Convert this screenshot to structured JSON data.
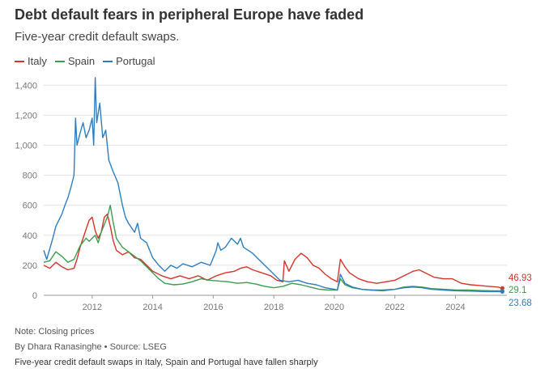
{
  "title": "Debt default fears in peripheral Europe have faded",
  "subtitle": "Five-year credit default swaps.",
  "note": "Note: Closing prices",
  "byline": "By Dhara Ranasinghe  • Source: LSEG",
  "caption": "Five-year credit default swaps in Italy, Spain and Portugal have fallen sharply",
  "colors": {
    "Italy": "#d7332b",
    "Spain": "#3a9e4f",
    "Portugal": "#2f7dbf",
    "grid": "#e3e3e3",
    "axis": "#999999"
  },
  "chart_data": {
    "type": "line",
    "x_ticks": [
      "2012",
      "2014",
      "2016",
      "2018",
      "2020",
      "2022",
      "2024"
    ],
    "y_ticks": [
      "0",
      "200",
      "400",
      "600",
      "800",
      "1,000",
      "1,200",
      "1,400"
    ],
    "xlim": [
      2010.4,
      2025.7
    ],
    "ylim": [
      0,
      1450
    ],
    "grid": true,
    "legend_position": "top-left",
    "series": [
      {
        "name": "Italy",
        "end_label": "46.93",
        "points": [
          [
            2010.4,
            200
          ],
          [
            2010.6,
            180
          ],
          [
            2010.8,
            220
          ],
          [
            2011.0,
            190
          ],
          [
            2011.2,
            170
          ],
          [
            2011.4,
            180
          ],
          [
            2011.5,
            240
          ],
          [
            2011.6,
            320
          ],
          [
            2011.8,
            440
          ],
          [
            2011.9,
            500
          ],
          [
            2012.0,
            520
          ],
          [
            2012.1,
            430
          ],
          [
            2012.2,
            380
          ],
          [
            2012.3,
            420
          ],
          [
            2012.4,
            520
          ],
          [
            2012.5,
            540
          ],
          [
            2012.6,
            460
          ],
          [
            2012.7,
            360
          ],
          [
            2012.8,
            300
          ],
          [
            2013.0,
            270
          ],
          [
            2013.2,
            290
          ],
          [
            2013.4,
            250
          ],
          [
            2013.6,
            240
          ],
          [
            2013.8,
            200
          ],
          [
            2014.0,
            160
          ],
          [
            2014.3,
            130
          ],
          [
            2014.6,
            110
          ],
          [
            2014.9,
            130
          ],
          [
            2015.2,
            110
          ],
          [
            2015.5,
            130
          ],
          [
            2015.8,
            100
          ],
          [
            2016.1,
            130
          ],
          [
            2016.4,
            150
          ],
          [
            2016.7,
            160
          ],
          [
            2016.9,
            180
          ],
          [
            2017.1,
            190
          ],
          [
            2017.3,
            170
          ],
          [
            2017.6,
            150
          ],
          [
            2017.9,
            130
          ],
          [
            2018.1,
            100
          ],
          [
            2018.3,
            90
          ],
          [
            2018.35,
            230
          ],
          [
            2018.5,
            160
          ],
          [
            2018.7,
            240
          ],
          [
            2018.9,
            280
          ],
          [
            2019.1,
            250
          ],
          [
            2019.3,
            200
          ],
          [
            2019.5,
            180
          ],
          [
            2019.7,
            140
          ],
          [
            2019.9,
            110
          ],
          [
            2020.1,
            90
          ],
          [
            2020.2,
            240
          ],
          [
            2020.35,
            190
          ],
          [
            2020.5,
            150
          ],
          [
            2020.8,
            110
          ],
          [
            2021.1,
            90
          ],
          [
            2021.4,
            80
          ],
          [
            2021.7,
            90
          ],
          [
            2022.0,
            100
          ],
          [
            2022.3,
            130
          ],
          [
            2022.6,
            160
          ],
          [
            2022.8,
            170
          ],
          [
            2023.0,
            150
          ],
          [
            2023.3,
            120
          ],
          [
            2023.6,
            110
          ],
          [
            2023.9,
            110
          ],
          [
            2024.2,
            80
          ],
          [
            2024.5,
            70
          ],
          [
            2024.8,
            65
          ],
          [
            2025.1,
            60
          ],
          [
            2025.4,
            55
          ],
          [
            2025.55,
            47
          ]
        ]
      },
      {
        "name": "Spain",
        "end_label": "29.1",
        "points": [
          [
            2010.4,
            220
          ],
          [
            2010.6,
            230
          ],
          [
            2010.8,
            290
          ],
          [
            2011.0,
            260
          ],
          [
            2011.2,
            220
          ],
          [
            2011.4,
            240
          ],
          [
            2011.6,
            330
          ],
          [
            2011.8,
            380
          ],
          [
            2011.9,
            360
          ],
          [
            2012.0,
            380
          ],
          [
            2012.1,
            400
          ],
          [
            2012.2,
            350
          ],
          [
            2012.3,
            420
          ],
          [
            2012.5,
            520
          ],
          [
            2012.6,
            600
          ],
          [
            2012.7,
            480
          ],
          [
            2012.8,
            380
          ],
          [
            2013.0,
            320
          ],
          [
            2013.2,
            290
          ],
          [
            2013.4,
            260
          ],
          [
            2013.6,
            230
          ],
          [
            2013.8,
            190
          ],
          [
            2014.0,
            150
          ],
          [
            2014.2,
            110
          ],
          [
            2014.4,
            80
          ],
          [
            2014.7,
            70
          ],
          [
            2015.0,
            75
          ],
          [
            2015.3,
            90
          ],
          [
            2015.6,
            110
          ],
          [
            2015.9,
            100
          ],
          [
            2016.2,
            95
          ],
          [
            2016.5,
            90
          ],
          [
            2016.8,
            80
          ],
          [
            2017.1,
            85
          ],
          [
            2017.4,
            75
          ],
          [
            2017.7,
            60
          ],
          [
            2018.0,
            50
          ],
          [
            2018.3,
            60
          ],
          [
            2018.6,
            80
          ],
          [
            2018.9,
            70
          ],
          [
            2019.2,
            55
          ],
          [
            2019.5,
            40
          ],
          [
            2019.8,
            35
          ],
          [
            2020.1,
            35
          ],
          [
            2020.2,
            110
          ],
          [
            2020.35,
            70
          ],
          [
            2020.6,
            50
          ],
          [
            2020.9,
            40
          ],
          [
            2021.2,
            35
          ],
          [
            2021.6,
            35
          ],
          [
            2022.0,
            40
          ],
          [
            2022.3,
            55
          ],
          [
            2022.6,
            60
          ],
          [
            2022.9,
            55
          ],
          [
            2023.2,
            45
          ],
          [
            2023.6,
            40
          ],
          [
            2024.0,
            35
          ],
          [
            2024.4,
            35
          ],
          [
            2024.8,
            32
          ],
          [
            2025.2,
            30
          ],
          [
            2025.55,
            29
          ]
        ]
      },
      {
        "name": "Portugal",
        "end_label": "23.68",
        "points": [
          [
            2010.4,
            300
          ],
          [
            2010.5,
            240
          ],
          [
            2010.6,
            310
          ],
          [
            2010.7,
            380
          ],
          [
            2010.8,
            460
          ],
          [
            2010.9,
            500
          ],
          [
            2011.0,
            540
          ],
          [
            2011.1,
            600
          ],
          [
            2011.2,
            650
          ],
          [
            2011.3,
            720
          ],
          [
            2011.4,
            800
          ],
          [
            2011.45,
            1180
          ],
          [
            2011.5,
            1000
          ],
          [
            2011.6,
            1080
          ],
          [
            2011.7,
            1150
          ],
          [
            2011.8,
            1050
          ],
          [
            2011.9,
            1100
          ],
          [
            2012.0,
            1180
          ],
          [
            2012.05,
            1000
          ],
          [
            2012.1,
            1450
          ],
          [
            2012.15,
            1150
          ],
          [
            2012.25,
            1280
          ],
          [
            2012.35,
            1050
          ],
          [
            2012.45,
            1100
          ],
          [
            2012.55,
            900
          ],
          [
            2012.7,
            820
          ],
          [
            2012.85,
            750
          ],
          [
            2013.0,
            600
          ],
          [
            2013.1,
            520
          ],
          [
            2013.2,
            480
          ],
          [
            2013.4,
            420
          ],
          [
            2013.5,
            480
          ],
          [
            2013.6,
            380
          ],
          [
            2013.8,
            350
          ],
          [
            2014.0,
            250
          ],
          [
            2014.2,
            200
          ],
          [
            2014.4,
            160
          ],
          [
            2014.6,
            200
          ],
          [
            2014.8,
            180
          ],
          [
            2015.0,
            210
          ],
          [
            2015.3,
            190
          ],
          [
            2015.6,
            220
          ],
          [
            2015.9,
            200
          ],
          [
            2016.0,
            250
          ],
          [
            2016.1,
            300
          ],
          [
            2016.15,
            350
          ],
          [
            2016.25,
            300
          ],
          [
            2016.4,
            320
          ],
          [
            2016.6,
            380
          ],
          [
            2016.8,
            340
          ],
          [
            2016.9,
            380
          ],
          [
            2017.0,
            320
          ],
          [
            2017.3,
            280
          ],
          [
            2017.6,
            220
          ],
          [
            2017.9,
            160
          ],
          [
            2018.2,
            100
          ],
          [
            2018.5,
            90
          ],
          [
            2018.8,
            100
          ],
          [
            2019.1,
            80
          ],
          [
            2019.4,
            70
          ],
          [
            2019.7,
            50
          ],
          [
            2020.0,
            40
          ],
          [
            2020.1,
            35
          ],
          [
            2020.2,
            140
          ],
          [
            2020.35,
            80
          ],
          [
            2020.6,
            55
          ],
          [
            2020.9,
            40
          ],
          [
            2021.2,
            35
          ],
          [
            2021.6,
            30
          ],
          [
            2022.0,
            40
          ],
          [
            2022.3,
            50
          ],
          [
            2022.6,
            55
          ],
          [
            2022.9,
            50
          ],
          [
            2023.2,
            40
          ],
          [
            2023.6,
            35
          ],
          [
            2024.0,
            30
          ],
          [
            2024.5,
            28
          ],
          [
            2025.0,
            25
          ],
          [
            2025.55,
            24
          ]
        ]
      }
    ]
  }
}
